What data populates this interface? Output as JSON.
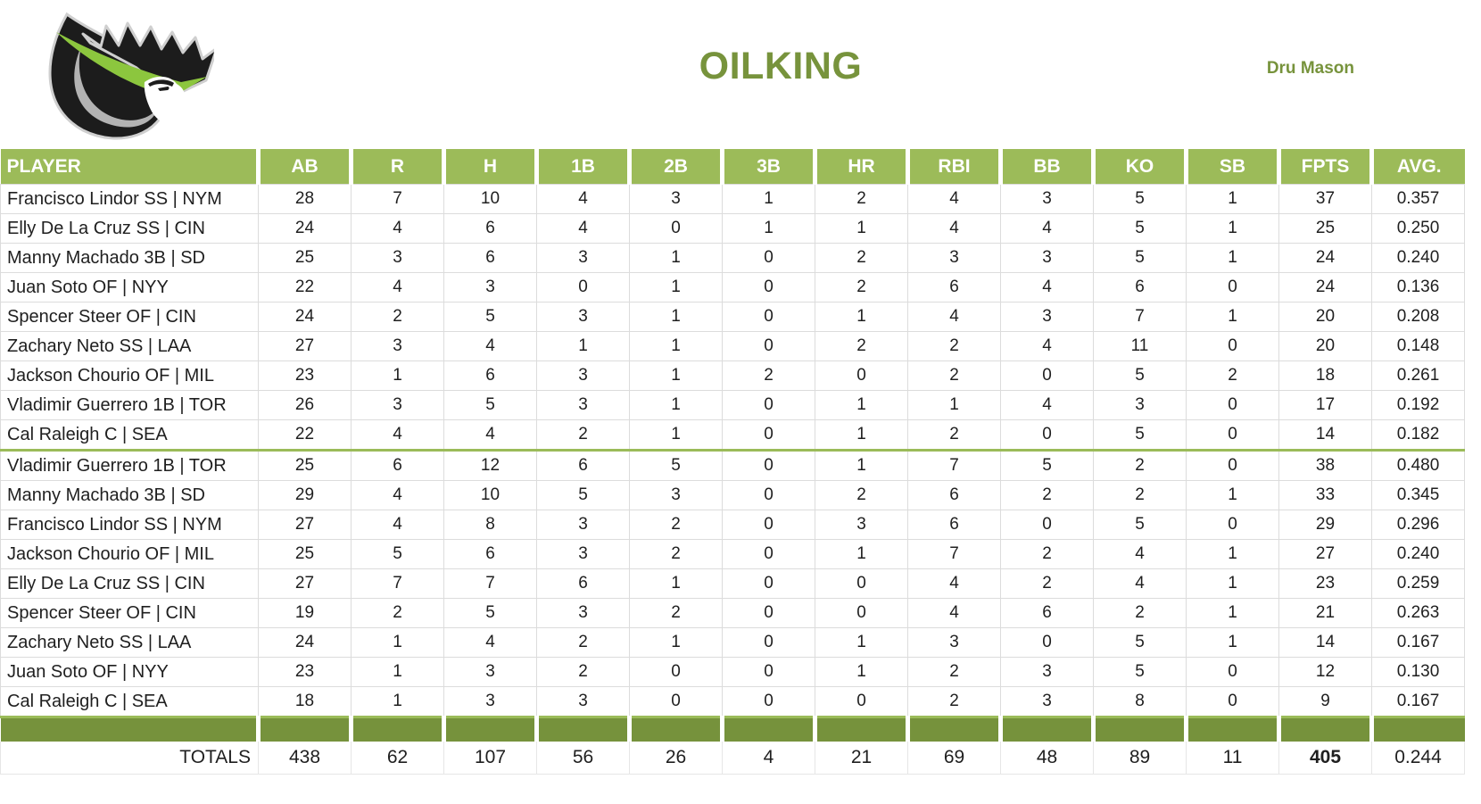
{
  "header": {
    "title": "OILKING",
    "owner": "Dru Mason"
  },
  "logo": {
    "icon": "crown-king-oil-drop",
    "colors": {
      "black": "#1c1c1c",
      "green": "#8CC63E",
      "gray": "#B3B3B3",
      "outline": "#cfcfcf"
    }
  },
  "colors": {
    "header_bg": "#9CBB59",
    "bar_bg": "#76923C",
    "divider_green": "#9BBB59",
    "accent_text": "#77933C",
    "grid": "#DCDCDC"
  },
  "table": {
    "columns": [
      "PLAYER",
      "AB",
      "R",
      "H",
      "1B",
      "2B",
      "3B",
      "HR",
      "RBI",
      "BB",
      "KO",
      "SB",
      "FPTS",
      "AVG."
    ],
    "divider_after_row": 9,
    "rows": [
      {
        "player": "Francisco Lindor SS | NYM",
        "values": [
          "28",
          "7",
          "10",
          "4",
          "3",
          "1",
          "2",
          "4",
          "3",
          "5",
          "1",
          "37",
          "0.357"
        ]
      },
      {
        "player": "Elly De La Cruz SS | CIN",
        "values": [
          "24",
          "4",
          "6",
          "4",
          "0",
          "1",
          "1",
          "4",
          "4",
          "5",
          "1",
          "25",
          "0.250"
        ]
      },
      {
        "player": "Manny Machado 3B | SD",
        "values": [
          "25",
          "3",
          "6",
          "3",
          "1",
          "0",
          "2",
          "3",
          "3",
          "5",
          "1",
          "24",
          "0.240"
        ]
      },
      {
        "player": "Juan Soto OF | NYY",
        "values": [
          "22",
          "4",
          "3",
          "0",
          "1",
          "0",
          "2",
          "6",
          "4",
          "6",
          "0",
          "24",
          "0.136"
        ]
      },
      {
        "player": "Spencer Steer OF | CIN",
        "values": [
          "24",
          "2",
          "5",
          "3",
          "1",
          "0",
          "1",
          "4",
          "3",
          "7",
          "1",
          "20",
          "0.208"
        ]
      },
      {
        "player": "Zachary Neto SS | LAA",
        "values": [
          "27",
          "3",
          "4",
          "1",
          "1",
          "0",
          "2",
          "2",
          "4",
          "11",
          "0",
          "20",
          "0.148"
        ]
      },
      {
        "player": "Jackson Chourio OF | MIL",
        "values": [
          "23",
          "1",
          "6",
          "3",
          "1",
          "2",
          "0",
          "2",
          "0",
          "5",
          "2",
          "18",
          "0.261"
        ]
      },
      {
        "player": "Vladimir Guerrero 1B | TOR",
        "values": [
          "26",
          "3",
          "5",
          "3",
          "1",
          "0",
          "1",
          "1",
          "4",
          "3",
          "0",
          "17",
          "0.192"
        ]
      },
      {
        "player": "Cal Raleigh C | SEA",
        "values": [
          "22",
          "4",
          "4",
          "2",
          "1",
          "0",
          "1",
          "2",
          "0",
          "5",
          "0",
          "14",
          "0.182"
        ]
      },
      {
        "player": "Vladimir Guerrero 1B | TOR",
        "values": [
          "25",
          "6",
          "12",
          "6",
          "5",
          "0",
          "1",
          "7",
          "5",
          "2",
          "0",
          "38",
          "0.480"
        ]
      },
      {
        "player": "Manny Machado 3B | SD",
        "values": [
          "29",
          "4",
          "10",
          "5",
          "3",
          "0",
          "2",
          "6",
          "2",
          "2",
          "1",
          "33",
          "0.345"
        ]
      },
      {
        "player": "Francisco Lindor SS | NYM",
        "values": [
          "27",
          "4",
          "8",
          "3",
          "2",
          "0",
          "3",
          "6",
          "0",
          "5",
          "0",
          "29",
          "0.296"
        ]
      },
      {
        "player": "Jackson Chourio OF | MIL",
        "values": [
          "25",
          "5",
          "6",
          "3",
          "2",
          "0",
          "1",
          "7",
          "2",
          "4",
          "1",
          "27",
          "0.240"
        ]
      },
      {
        "player": "Elly De La Cruz SS | CIN",
        "values": [
          "27",
          "7",
          "7",
          "6",
          "1",
          "0",
          "0",
          "4",
          "2",
          "4",
          "1",
          "23",
          "0.259"
        ]
      },
      {
        "player": "Spencer Steer OF | CIN",
        "values": [
          "19",
          "2",
          "5",
          "3",
          "2",
          "0",
          "0",
          "4",
          "6",
          "2",
          "1",
          "21",
          "0.263"
        ]
      },
      {
        "player": "Zachary Neto SS | LAA",
        "values": [
          "24",
          "1",
          "4",
          "2",
          "1",
          "0",
          "1",
          "3",
          "0",
          "5",
          "1",
          "14",
          "0.167"
        ]
      },
      {
        "player": "Juan Soto OF | NYY",
        "values": [
          "23",
          "1",
          "3",
          "2",
          "0",
          "0",
          "1",
          "2",
          "3",
          "5",
          "0",
          "12",
          "0.130"
        ]
      },
      {
        "player": "Cal Raleigh C | SEA",
        "values": [
          "18",
          "1",
          "3",
          "3",
          "0",
          "0",
          "0",
          "2",
          "3",
          "8",
          "0",
          "9",
          "0.167"
        ]
      }
    ],
    "totals": {
      "label": "TOTALS",
      "values": [
        "438",
        "62",
        "107",
        "56",
        "26",
        "4",
        "21",
        "69",
        "48",
        "89",
        "11",
        "405",
        "0.244"
      ],
      "bold_column": "FPTS"
    }
  }
}
